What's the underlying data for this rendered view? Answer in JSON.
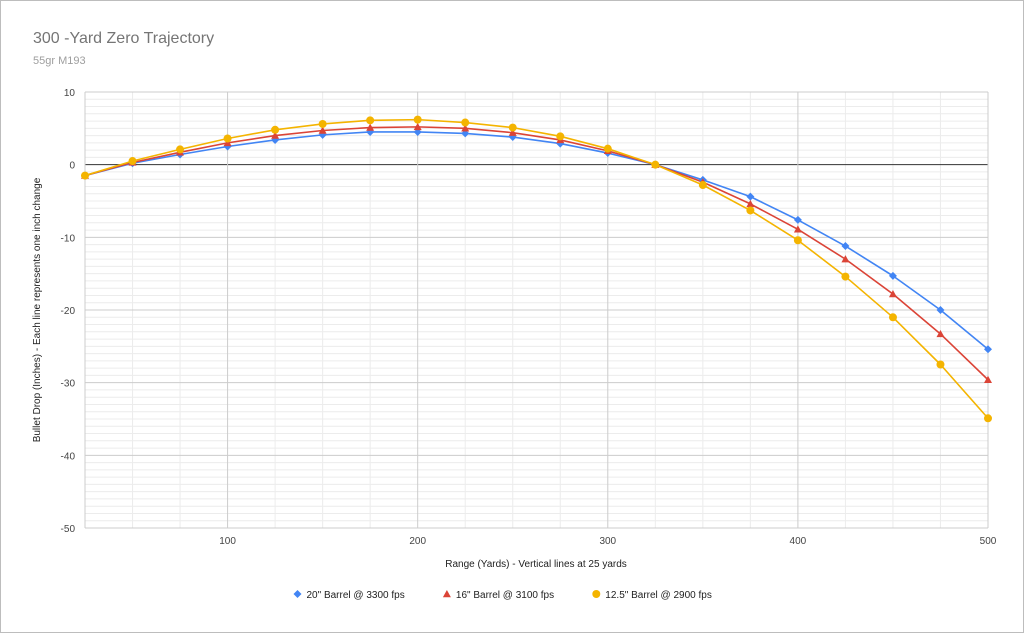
{
  "chart_data": {
    "type": "line",
    "title": "300 -Yard Zero Trajectory",
    "subtitle": "55gr M193",
    "xlabel": "Range (Yards) - Vertical lines at 25 yards",
    "ylabel": "Bullet Drop (Inches) - Each line represents one inch change",
    "xlim": [
      25,
      500
    ],
    "ylim": [
      -50,
      10
    ],
    "x_ticks": [
      100,
      200,
      300,
      400,
      500
    ],
    "y_ticks": [
      10,
      0,
      -10,
      -20,
      -30,
      -40,
      -50
    ],
    "x_minor_step": 25,
    "y_minor_step": 1,
    "grid": true,
    "legend_position": "bottom",
    "x": [
      25,
      50,
      75,
      100,
      125,
      150,
      175,
      200,
      225,
      250,
      275,
      300,
      325,
      350,
      375,
      400,
      425,
      450,
      475,
      500
    ],
    "series": [
      {
        "name": "20\" Barrel @ 3300 fps",
        "color": "#4285f4",
        "marker": "diamond",
        "values": [
          -1.5,
          0.2,
          1.4,
          2.5,
          3.4,
          4.1,
          4.5,
          4.5,
          4.3,
          3.8,
          2.9,
          1.6,
          0.0,
          -2.1,
          -4.4,
          -7.6,
          -11.2,
          -15.3,
          -20.0,
          -25.4
        ]
      },
      {
        "name": "16\" Barrel @ 3100 fps",
        "color": "#db4437",
        "marker": "triangle",
        "values": [
          -1.5,
          0.3,
          1.7,
          3.0,
          4.0,
          4.7,
          5.1,
          5.2,
          5.0,
          4.4,
          3.4,
          1.9,
          0.0,
          -2.4,
          -5.4,
          -8.9,
          -13.0,
          -17.8,
          -23.3,
          -29.6
        ]
      },
      {
        "name": "12.5\" Barrel @ 2900 fps",
        "color": "#f4b400",
        "marker": "circle",
        "values": [
          -1.5,
          0.5,
          2.1,
          3.6,
          4.8,
          5.6,
          6.1,
          6.2,
          5.8,
          5.1,
          3.9,
          2.2,
          0.0,
          -2.8,
          -6.3,
          -10.4,
          -15.4,
          -21.0,
          -27.5,
          -34.9
        ]
      }
    ]
  }
}
